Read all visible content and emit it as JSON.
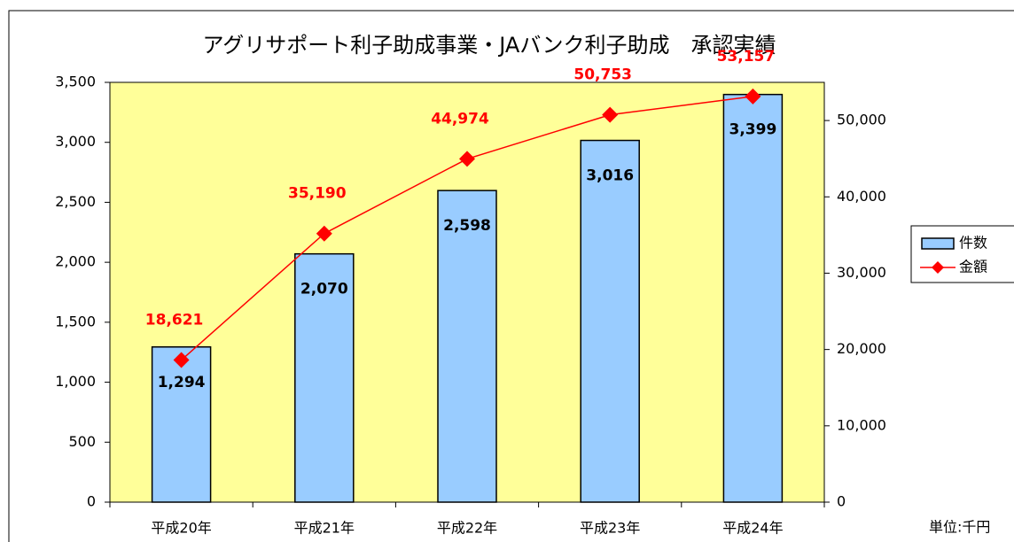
{
  "chart_data": {
    "type": "bar_line",
    "title": "アグリサポート利子助成事業・JAバンク利子助成　承認実績",
    "categories": [
      "平成20年",
      "平成21年",
      "平成22年",
      "平成23年",
      "平成24年"
    ],
    "series": [
      {
        "name": "件数",
        "type": "bar",
        "color": "#99ccff",
        "values": [
          1294,
          2070,
          2598,
          3016,
          3399
        ],
        "value_labels": [
          "1,294",
          "2,070",
          "2,598",
          "3,016",
          "3,399"
        ]
      },
      {
        "name": "金額",
        "type": "line",
        "axis": "y2",
        "color": "#ff0000",
        "values": [
          18621,
          35190,
          44974,
          50753,
          53157
        ],
        "value_labels": [
          "18,621",
          "35,190",
          "44,974",
          "50,753",
          "53,157"
        ]
      }
    ],
    "ylim": [
      0,
      3500
    ],
    "yticks": [
      0,
      500,
      {
        "value": 1000,
        "label": "1,000"
      },
      {
        "value": 1500,
        "label": "1,500"
      },
      {
        "value": 2000,
        "label": "2,000"
      },
      {
        "value": 2500,
        "label": "2,500"
      },
      {
        "value": 3000,
        "label": "3,000"
      },
      {
        "value": 3500,
        "label": "3,500"
      }
    ],
    "y2lim": [
      0,
      55000
    ],
    "y2ticks": [
      0,
      {
        "value": 10000,
        "label": "10,000"
      },
      {
        "value": 20000,
        "label": "20,000"
      },
      {
        "value": 30000,
        "label": "30,000"
      },
      {
        "value": 40000,
        "label": "40,000"
      },
      {
        "value": 50000,
        "label": "50,000"
      }
    ],
    "plot_background": "#ffff99",
    "unit_note": "単位:千円"
  }
}
